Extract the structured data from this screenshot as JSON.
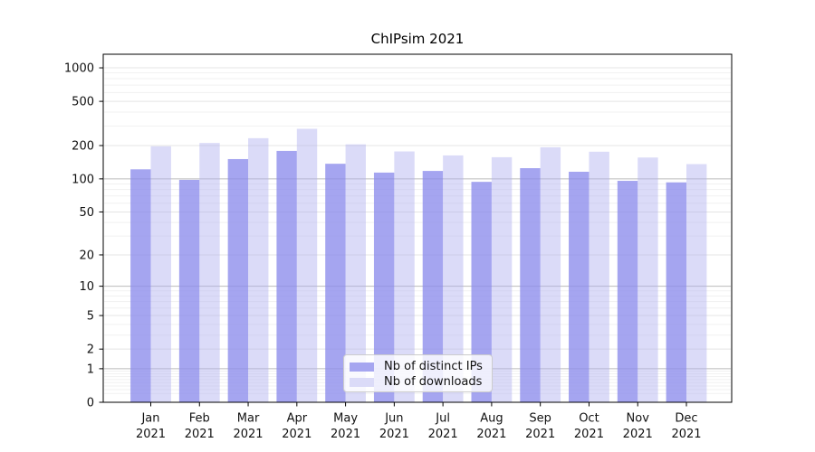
{
  "title": "ChIPsim 2021",
  "legend": {
    "items": [
      {
        "label": "Nb of distinct IPs",
        "color": "#a6a6f0"
      },
      {
        "label": "Nb of downloads",
        "color": "#dbdbf8"
      }
    ]
  },
  "colors": {
    "ips_bar": "#8c8cec",
    "downloads_bar": "#afafef",
    "grid_major": "#bbbbbb",
    "grid_labeled": "#e4e4e4",
    "grid_minor": "#f1f1f1",
    "axis": "#000000",
    "tick_text": "#111111"
  },
  "chart_data": {
    "type": "bar",
    "title": "ChIPsim 2021",
    "categories": [
      "Jan 2021",
      "Feb 2021",
      "Mar 2021",
      "Apr 2021",
      "May 2021",
      "Jun 2021",
      "Jul 2021",
      "Aug 2021",
      "Sep 2021",
      "Oct 2021",
      "Nov 2021",
      "Dec 2021"
    ],
    "series": [
      {
        "name": "Nb of distinct IPs",
        "values": [
          122,
          98,
          151,
          179,
          137,
          114,
          118,
          94,
          125,
          116,
          96,
          93
        ]
      },
      {
        "name": "Nb of downloads",
        "values": [
          197,
          211,
          233,
          283,
          205,
          177,
          163,
          157,
          193,
          176,
          156,
          136
        ]
      }
    ],
    "xlabel": "",
    "ylabel": "",
    "yscale": "log(1+x)",
    "yticks": [
      0,
      1,
      2,
      5,
      10,
      20,
      50,
      100,
      200,
      500,
      1000
    ],
    "ylim": [
      0,
      1300
    ],
    "grid": true,
    "legend_position": "lower center"
  }
}
